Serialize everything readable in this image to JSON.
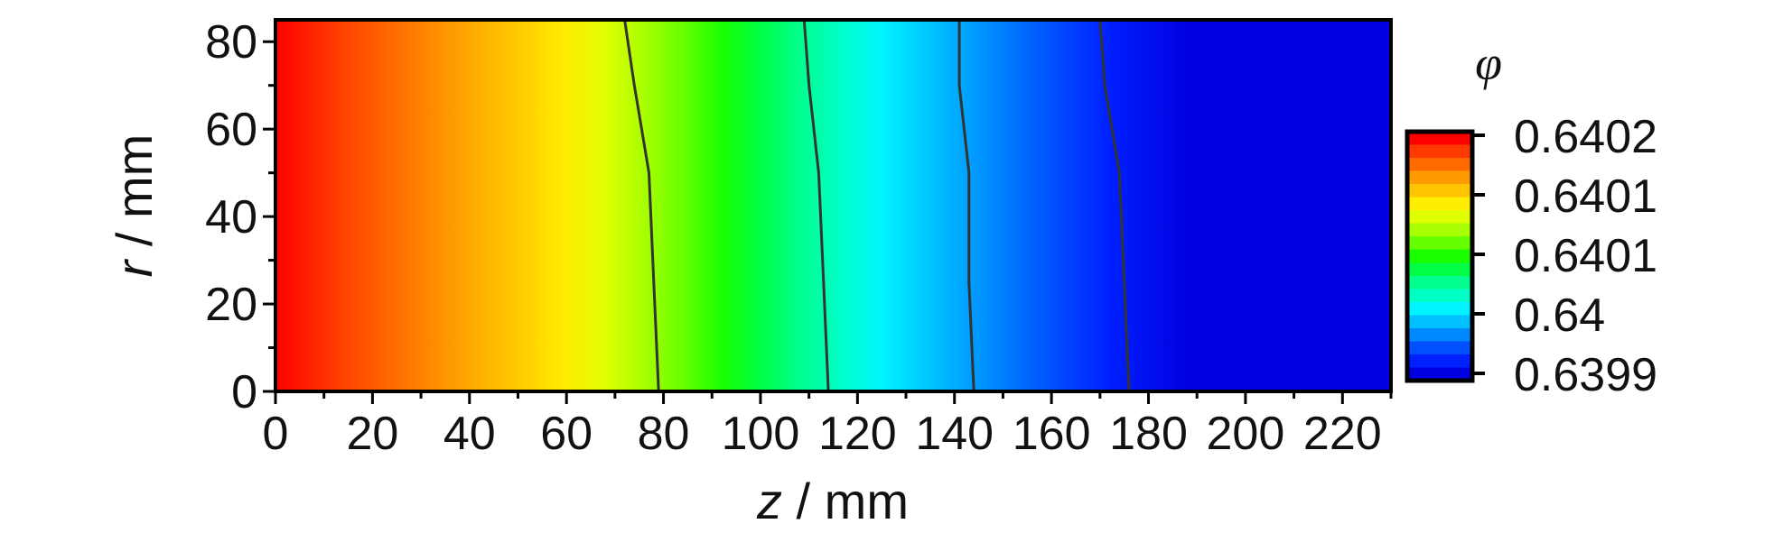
{
  "chart_data": {
    "type": "heatmap",
    "title": "",
    "xlabel": {
      "symbol": "z",
      "unit": " / mm"
    },
    "ylabel": {
      "symbol": "r",
      "unit": " / mm"
    },
    "xlim": [
      0,
      230
    ],
    "ylim": [
      0,
      85
    ],
    "x_ticks": [
      0,
      20,
      40,
      60,
      80,
      100,
      120,
      140,
      160,
      180,
      200,
      220
    ],
    "y_ticks": [
      0,
      20,
      40,
      60,
      80
    ],
    "colorbar": {
      "title": "φ",
      "tick_labels": [
        "0.6402",
        "0.6401",
        "0.6401",
        "0.64",
        "0.6399"
      ],
      "colors": [
        "#ff0000",
        "#ff3a00",
        "#ff6a00",
        "#ff9a00",
        "#ffc400",
        "#ffee00",
        "#e0ff00",
        "#a8ff00",
        "#66ff00",
        "#1aff00",
        "#00ff44",
        "#00ff8c",
        "#00ffc4",
        "#00f4ff",
        "#00c0ff",
        "#0088ff",
        "#0050ff",
        "#0020ff",
        "#0000e0"
      ]
    },
    "field_description": "phi decreases monotonically with z; nearly independent of r",
    "field_z_at_phi_level": [
      0,
      12,
      24,
      36,
      48,
      60,
      68,
      76,
      84,
      92,
      100,
      108,
      116,
      125,
      136,
      148,
      160,
      172,
      188,
      205,
      230
    ],
    "contour_lines": [
      {
        "points": [
          [
            72,
            85
          ],
          [
            74,
            70
          ],
          [
            77,
            50
          ],
          [
            78,
            25
          ],
          [
            79,
            0
          ]
        ]
      },
      {
        "points": [
          [
            109,
            85
          ],
          [
            110,
            70
          ],
          [
            112,
            50
          ],
          [
            113,
            25
          ],
          [
            114,
            0
          ]
        ]
      },
      {
        "points": [
          [
            141,
            85
          ],
          [
            141,
            70
          ],
          [
            143,
            50
          ],
          [
            143,
            25
          ],
          [
            144,
            0
          ]
        ]
      },
      {
        "points": [
          [
            170,
            85
          ],
          [
            171,
            70
          ],
          [
            174,
            50
          ],
          [
            175,
            25
          ],
          [
            176,
            0
          ]
        ]
      }
    ]
  }
}
